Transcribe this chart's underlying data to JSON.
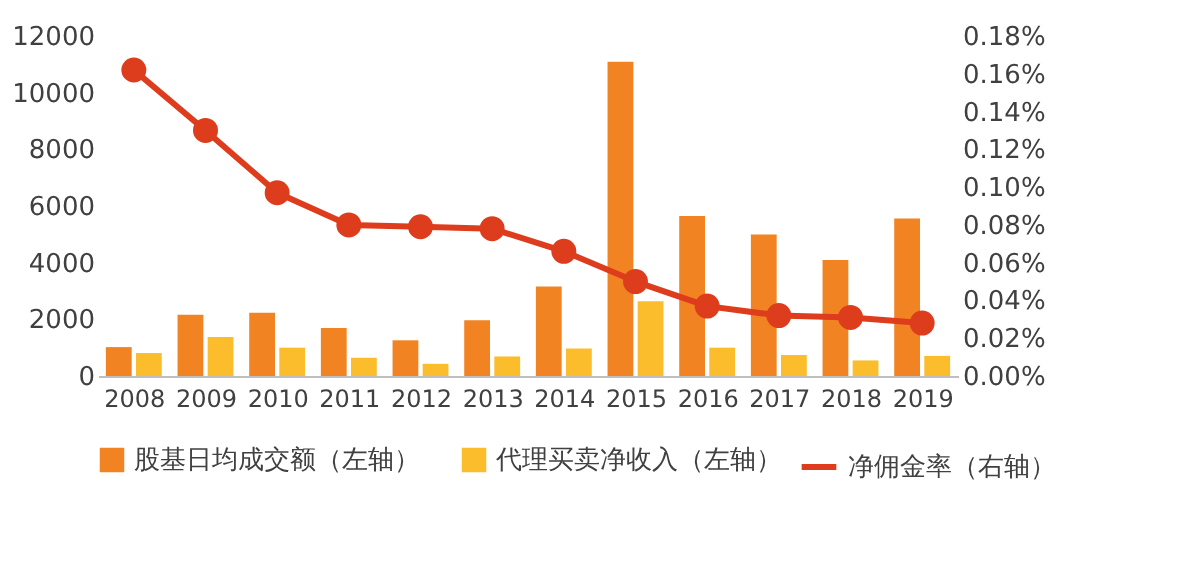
{
  "chart_data": {
    "type": "bar",
    "categories": [
      "2008",
      "2009",
      "2010",
      "2011",
      "2012",
      "2013",
      "2014",
      "2015",
      "2016",
      "2017",
      "2018",
      "2019"
    ],
    "series": [
      {
        "name": "股基日均成交额（左轴）",
        "color": "#f28322",
        "values": [
          1020,
          2160,
          2230,
          1690,
          1260,
          1970,
          3160,
          11090,
          5650,
          4990,
          4090,
          5560
        ]
      },
      {
        "name": "代理买卖净收入（左轴）",
        "color": "#fbbd2c",
        "values": [
          810,
          1380,
          1000,
          640,
          430,
          690,
          970,
          2640,
          1000,
          740,
          550,
          710
        ]
      },
      {
        "name": "净佣金率（右轴）",
        "type": "line",
        "axis": "y2",
        "color": "#dd3d1c",
        "marker": "circle",
        "values": [
          0.162,
          0.13,
          0.097,
          0.08,
          0.079,
          0.078,
          0.066,
          0.05,
          0.037,
          0.032,
          0.031,
          0.028
        ]
      }
    ],
    "ylim": [
      0,
      12000
    ],
    "yticks": [
      0,
      2000,
      4000,
      6000,
      8000,
      10000,
      12000
    ],
    "y2lim": [
      0,
      0.18
    ],
    "y2ticks": [
      {
        "value": 0,
        "label": "0.00%"
      },
      {
        "value": 0.02,
        "label": "0.02%"
      },
      {
        "value": 0.04,
        "label": "0.04%"
      },
      {
        "value": 0.06,
        "label": "0.06%"
      },
      {
        "value": 0.08,
        "label": "0.08%"
      },
      {
        "value": 0.1,
        "label": "0.10%"
      },
      {
        "value": 0.12,
        "label": "0.12%"
      },
      {
        "value": 0.14,
        "label": "0.14%"
      },
      {
        "value": 0.16,
        "label": "0.16%"
      },
      {
        "value": 0.18,
        "label": "0.18%"
      }
    ],
    "grid": false,
    "legend": "bottom"
  }
}
